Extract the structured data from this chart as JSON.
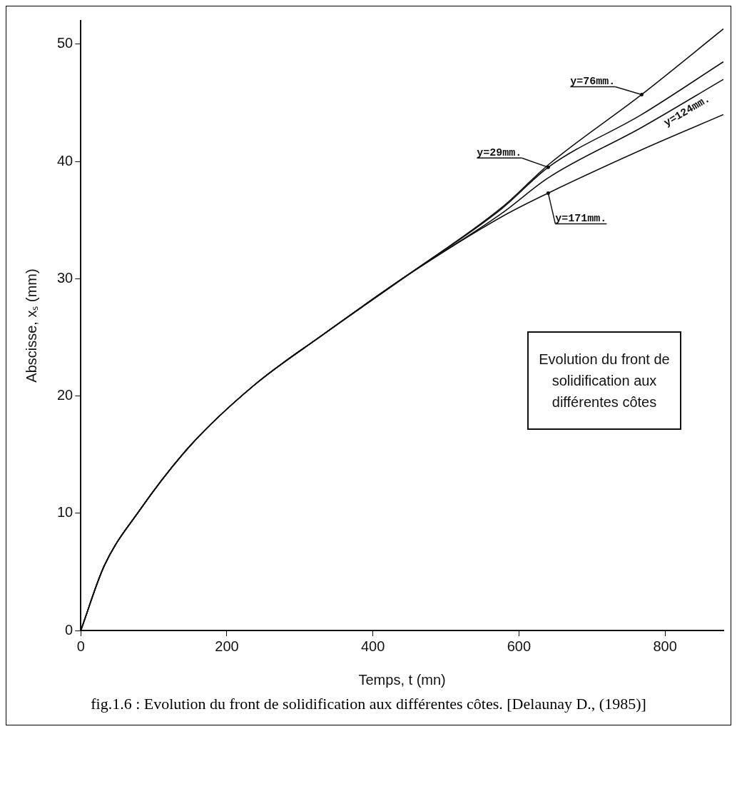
{
  "chart_data": {
    "type": "line",
    "xlabel": "Temps, t (mn)",
    "ylabel": "Abscisse, xₛ (mm)",
    "x": [
      0,
      32,
      80,
      149,
      237,
      331,
      445,
      577,
      640,
      768,
      880
    ],
    "series": [
      {
        "name": "y=76mm.",
        "color": "#111111",
        "values": [
          0,
          5.5,
          10.2,
          15.7,
          20.9,
          25.2,
          30.2,
          36.1,
          39.7,
          45.7,
          51.3
        ]
      },
      {
        "name": "y=29mm.",
        "color": "#111111",
        "values": [
          0,
          5.5,
          10.2,
          15.7,
          20.9,
          25.2,
          30.2,
          36.0,
          39.5,
          44.0,
          48.5
        ]
      },
      {
        "name": "y=124mm.",
        "color": "#111111",
        "values": [
          0,
          5.5,
          10.2,
          15.7,
          20.9,
          25.2,
          30.2,
          35.6,
          38.6,
          42.9,
          47.0
        ]
      },
      {
        "name": "y=171mm.",
        "color": "#111111",
        "values": [
          0,
          5.5,
          10.2,
          15.7,
          20.9,
          25.2,
          30.2,
          35.3,
          37.3,
          41.0,
          44.0
        ]
      }
    ],
    "xlim": [
      0,
      880
    ],
    "xticks": [
      0,
      200,
      400,
      600,
      800
    ],
    "ylim": [
      0,
      52
    ],
    "yticks": [
      0,
      10,
      20,
      30,
      40,
      50
    ],
    "grid": false,
    "legend": false,
    "annotations": [
      "Evolution du front de solidification aux différentes côtes",
      "fig.1.6 : Evolution du front de solidification aux différentes côtes.  [Delaunay D., (1985)]"
    ]
  }
}
